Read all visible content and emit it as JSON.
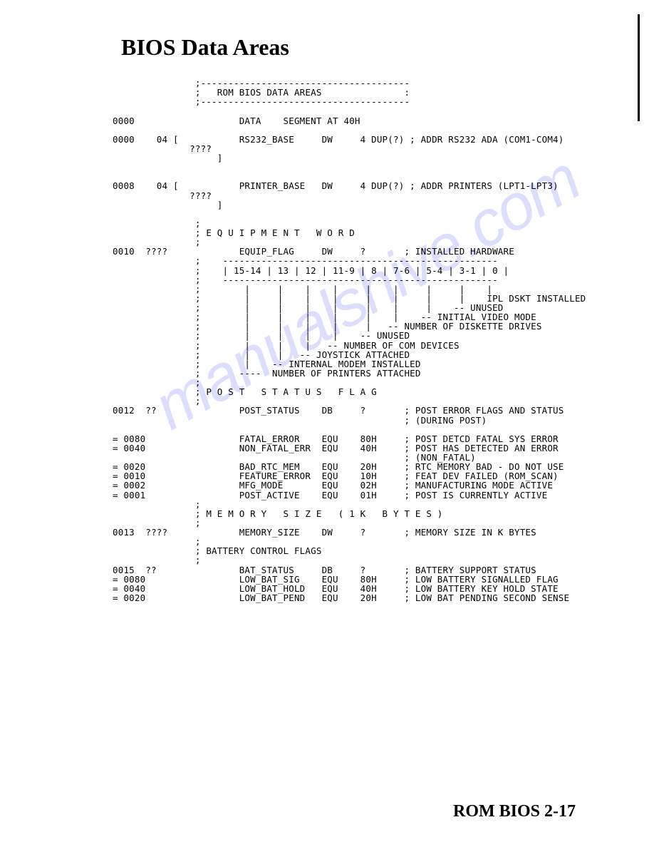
{
  "title": "BIOS Data Areas",
  "footer": "ROM BIOS  2-17",
  "watermark": "manualshive.com",
  "listing": {
    "page_bg": "#ffffff",
    "text_color": "#000000",
    "font_family": "Courier New",
    "font_size_pt": 9,
    "lines": [
      "               ;--------------------------------------",
      "               ;   ROM BIOS DATA AREAS               :",
      "               ;--------------------------------------",
      "",
      "0000                   DATA    SEGMENT AT 40H",
      "",
      "0000    04 [           RS232_BASE     DW     4 DUP(?) ; ADDR RS232 ADA (COM1-COM4)",
      "              ????",
      "                   ]",
      "",
      "",
      "0008    04 [           PRINTER_BASE   DW     4 DUP(?) ; ADDR PRINTERS (LPT1-LPT3)",
      "              ????",
      "                   ]",
      "",
      "               ;",
      "               ; E Q U I P M E N T   W O R D",
      "               ;",
      "0010  ????             EQUIP_FLAG     DW     ?       ; INSTALLED HARDWARE",
      "               ;    --------------------------------------------------",
      "               ;    | 15-14 | 13 | 12 | 11-9 | 8 | 7-6 | 5-4 | 3-1 | 0 |",
      "               ;    --------------------------------------------------",
      "               ;        |     |    |    |     |    |     |     |    |",
      "               ;        |     |    |    |     |    |     |     |    IPL DSKT INSTALLED",
      "               ;        |     |    |    |     |    |     |    -- UNUSED",
      "               ;        |     |    |    |     |    |    -- INITIAL VIDEO MODE",
      "               ;        |     |    |    |     |   -- NUMBER OF DISKETTE DRIVES",
      "               ;        |     |    |    |    -- UNUSED",
      "               ;        |     |    |   -- NUMBER OF COM DEVICES",
      "               ;        |     |   -- JOYSTICK ATTACHED",
      "               ;        |    -- INTERNAL MODEM INSTALLED",
      "               ;       ----  NUMBER OF PRINTERS ATTACHED",
      "               ;",
      "               ; P O S T   S T A T U S   F L A G",
      "               ;",
      "0012  ??               POST_STATUS    DB     ?       ; POST ERROR FLAGS AND STATUS",
      "                                                     ; (DURING POST)",
      "",
      "= 0080                 FATAL_ERROR    EQU    80H     ; POST DETCD FATAL SYS ERROR",
      "= 0040                 NON_FATAL_ERR  EQU    40H     ; POST HAS DETECTED AN ERROR",
      "                                                     ; (NON_FATAL)",
      "= 0020                 BAD_RTC_MEM    EQU    20H     ; RTC MEMORY BAD - DO NOT USE",
      "= 0010                 FEATURE_ERROR  EQU    10H     ; FEAT DEV FAILED (ROM_SCAN)",
      "= 0002                 MFG_MODE       EQU    02H     ; MANUFACTURING MODE ACTIVE",
      "= 0001                 POST_ACTIVE    EQU    01H     ; POST IS CURRENTLY ACTIVE",
      "               ;",
      "               ; M E M O R Y   S I Z E   ( 1 K   B Y T E S )",
      "               ;",
      "0013  ????             MEMORY_SIZE    DW     ?       ; MEMORY SIZE IN K BYTES",
      "               ;",
      "               ; BATTERY CONTROL FLAGS",
      "               ;",
      "0015  ??               BAT_STATUS     DB     ?       ; BATTERY SUPPORT STATUS",
      "= 0080                 LOW_BAT_SIG    EQU    80H     ; LOW BATTERY SIGNALLED FLAG",
      "= 0040                 LOW_BAT_HOLD   EQU    40H     ; LOW BATTERY KEY HOLD STATE",
      "= 0020                 LOW_BAT_PEND   EQU    20H     ; LOW BAT PENDING SECOND SENSE"
    ]
  }
}
